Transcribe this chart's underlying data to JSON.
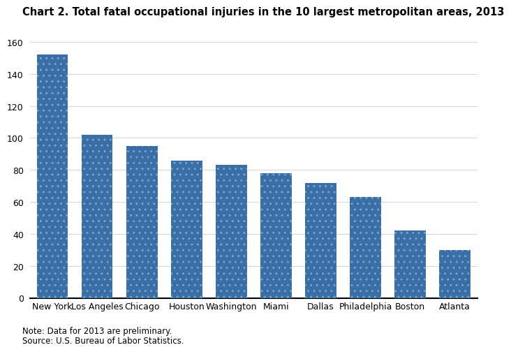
{
  "title": "Chart 2. Total fatal occupational injuries in the 10 largest metropolitan areas, 2013",
  "categories": [
    "New York",
    "Los Angeles",
    "Chicago",
    "Houston",
    "Washington",
    "Miami",
    "Dallas",
    "Philadelphia",
    "Boston",
    "Atlanta"
  ],
  "values": [
    152,
    102,
    95,
    86,
    83,
    78,
    72,
    63,
    42,
    30
  ],
  "bar_face_color": "#3a6ea5",
  "bar_dot_color": "#5a9fd4",
  "ylim": [
    0,
    160
  ],
  "yticks": [
    0,
    20,
    40,
    60,
    80,
    100,
    120,
    140,
    160
  ],
  "note": "Note: Data for 2013 are preliminary.",
  "source": "Source: U.S. Bureau of Labor Statistics.",
  "title_fontsize": 10.5,
  "tick_fontsize": 9,
  "note_fontsize": 8.5,
  "background_color": "#ffffff",
  "grid_color": "#cccccc"
}
